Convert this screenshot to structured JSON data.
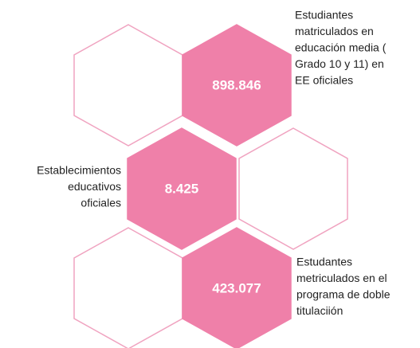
{
  "items": [
    {
      "value": "898.846",
      "label": [
        "Estudiantes",
        "matriculados en",
        "educación media (",
        "Grado 10 y 11) en",
        "EE oficiales"
      ]
    },
    {
      "value": "8.425",
      "label": [
        "Establecimientos",
        "educativos",
        "oficiales"
      ]
    },
    {
      "value": "423.077",
      "label": [
        "Estudantes",
        "metriculados en el",
        "programa de doble",
        "titulaciión"
      ]
    }
  ]
}
